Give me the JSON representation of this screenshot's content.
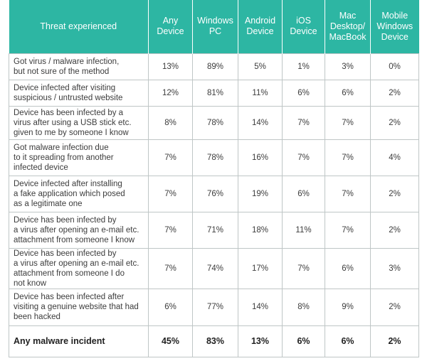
{
  "headers": [
    "Threat experienced",
    "Any\nDevice",
    "Windows\nPC",
    "Android\nDevice",
    "iOS\nDevice",
    "Mac\nDesktop/\nMacBook",
    "Mobile\nWindows\nDevice"
  ],
  "rows": [
    [
      "Got virus / malware infection,\nbut not sure of the method",
      "13%",
      "89%",
      "5%",
      "1%",
      "3%",
      "0%"
    ],
    [
      "Device infected after visiting\nsuspicious / untrusted website",
      "12%",
      "81%",
      "11%",
      "6%",
      "6%",
      "2%"
    ],
    [
      "Device has been infected by a\nvirus after using a USB stick etc.\ngiven to me by someone I know",
      "8%",
      "78%",
      "14%",
      "7%",
      "7%",
      "2%"
    ],
    [
      "Got malware infection due\nto it spreading from another\ninfected device",
      "7%",
      "78%",
      "16%",
      "7%",
      "7%",
      "4%"
    ],
    [
      "Device infected after installing\na fake application which posed\nas a legitimate one",
      "7%",
      "76%",
      "19%",
      "6%",
      "7%",
      "2%"
    ],
    [
      "Device has been infected by\na virus after opening an e-mail etc.\nattachment from someone I know",
      "7%",
      "71%",
      "18%",
      "11%",
      "7%",
      "2%"
    ],
    [
      "Device has been infected by\na virus after opening an e-mail etc.\nattachment from someone I do\nnot know",
      "7%",
      "74%",
      "17%",
      "7%",
      "6%",
      "3%"
    ],
    [
      "Device has been infected after\nvisiting a genuine website that had\nbeen hacked",
      "6%",
      "77%",
      "14%",
      "8%",
      "9%",
      "2%"
    ],
    [
      "Any malware incident",
      "45%",
      "83%",
      "13%",
      "6%",
      "6%",
      "2%"
    ]
  ],
  "colors": {
    "header_bg": "#2db6a3",
    "header_text": "#ffffff",
    "border": "#bfc6c6",
    "text": "#3c3c3c"
  }
}
